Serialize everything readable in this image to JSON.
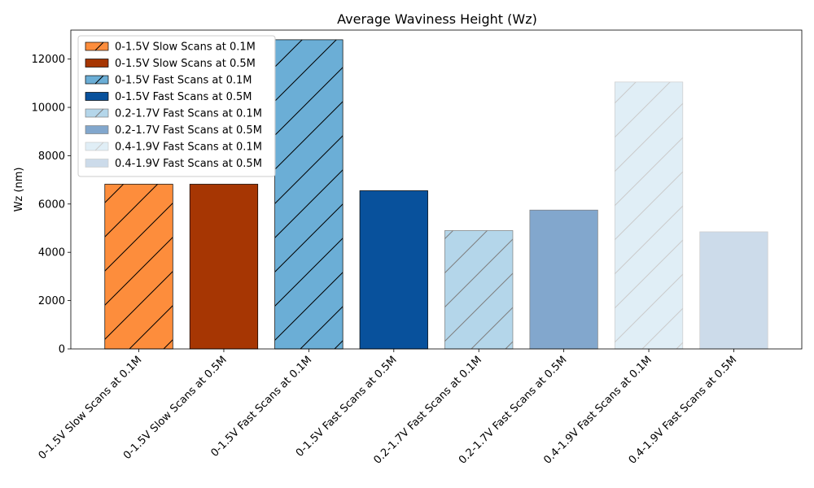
{
  "chart_data": {
    "type": "bar",
    "title": "Average Waviness Height (Wz)",
    "xlabel": "",
    "ylabel": "Wz (nm)",
    "ylim": [
      0,
      13200
    ],
    "yticks": [
      0,
      2000,
      4000,
      6000,
      8000,
      10000,
      12000
    ],
    "grid": false,
    "legend_position": "top-left",
    "categories": [
      "0-1.5V Slow Scans at 0.1M",
      "0-1.5V Slow Scans at 0.5M",
      "0-1.5V Fast Scans at 0.1M",
      "0-1.5V Fast Scans at 0.5M",
      "0.2-1.7V Fast Scans at 0.1M",
      "0.2-1.7V Fast Scans at 0.5M",
      "0.4-1.9V Fast Scans at 0.1M",
      "0.4-1.9V Fast Scans at 0.5M"
    ],
    "values": [
      6820,
      6820,
      12800,
      6550,
      4900,
      5750,
      11050,
      4850
    ],
    "colors": [
      "#fd8d3c",
      "#a63603",
      "#6baed6",
      "#08519c",
      "#6baed6",
      "#08519c",
      "#6baed6",
      "#08519c"
    ],
    "alphas": [
      1,
      1,
      1,
      1,
      0.5,
      0.5,
      0.2,
      0.2
    ],
    "hatched": [
      true,
      false,
      true,
      false,
      true,
      false,
      true,
      false
    ]
  }
}
